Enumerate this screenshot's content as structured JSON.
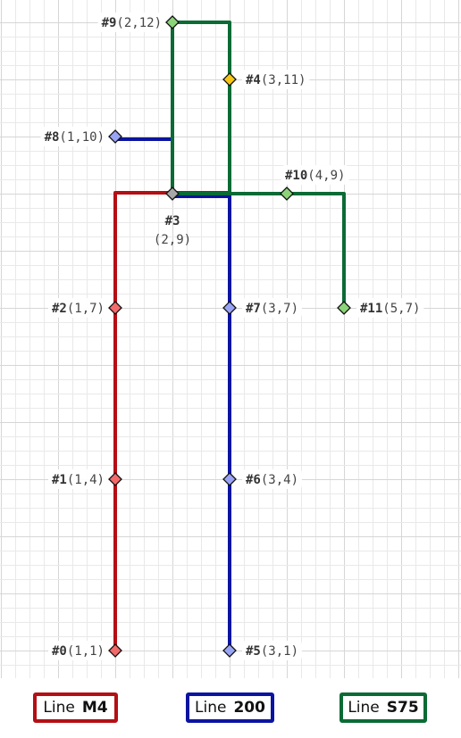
{
  "colors": {
    "M4": "#b30f14",
    "200": "#0b14a0",
    "S75": "#0b6b35",
    "grid_minor": "#e9e9e9",
    "grid_major": "#d6d6d6"
  },
  "nodes": [
    {
      "id": "#0",
      "x": 1,
      "y": 1,
      "color": "#f26a6a",
      "label_side": "left"
    },
    {
      "id": "#1",
      "x": 1,
      "y": 4,
      "color": "#f26a6a",
      "label_side": "left"
    },
    {
      "id": "#2",
      "x": 1,
      "y": 7,
      "color": "#f26a6a",
      "label_side": "left"
    },
    {
      "id": "#3",
      "x": 2,
      "y": 9,
      "color": "#a8a8a8",
      "label_side": "below"
    },
    {
      "id": "#4",
      "x": 3,
      "y": 11,
      "color": "#f5c518",
      "label_side": "right"
    },
    {
      "id": "#5",
      "x": 3,
      "y": 1,
      "color": "#9aa4f5",
      "label_side": "right"
    },
    {
      "id": "#6",
      "x": 3,
      "y": 4,
      "color": "#9aa4f5",
      "label_side": "right"
    },
    {
      "id": "#7",
      "x": 3,
      "y": 7,
      "color": "#9aa4f5",
      "label_side": "right"
    },
    {
      "id": "#8",
      "x": 1,
      "y": 10,
      "color": "#9aa4f5",
      "label_side": "left"
    },
    {
      "id": "#9",
      "x": 2,
      "y": 12,
      "color": "#8cd47a",
      "label_side": "left"
    },
    {
      "id": "#10",
      "x": 4,
      "y": 9,
      "color": "#8cd47a",
      "label_side": "above"
    },
    {
      "id": "#11",
      "x": 5,
      "y": 7,
      "color": "#8cd47a",
      "label_side": "right"
    }
  ],
  "lines": [
    {
      "name": "M4",
      "color_key": "M4",
      "path": [
        [
          1,
          1
        ],
        [
          1,
          4
        ],
        [
          1,
          7
        ],
        [
          1,
          9
        ],
        [
          2,
          9
        ],
        [
          3,
          9
        ],
        [
          3,
          11
        ]
      ]
    },
    {
      "name": "200",
      "color_key": "200",
      "path": [
        [
          3,
          1
        ],
        [
          3,
          4
        ],
        [
          3,
          7
        ],
        [
          3,
          9
        ],
        [
          2,
          9
        ],
        [
          2,
          10
        ],
        [
          1,
          10
        ]
      ]
    },
    {
      "name": "S75",
      "color_key": "S75",
      "path": [
        [
          5,
          7
        ],
        [
          5,
          9
        ],
        [
          4,
          9
        ],
        [
          3,
          9
        ],
        [
          2,
          9
        ],
        [
          2,
          12
        ],
        [
          3,
          12
        ],
        [
          3,
          9
        ]
      ]
    }
  ],
  "legend": [
    {
      "word": "Line",
      "name": "M4",
      "color_key": "M4"
    },
    {
      "word": "Line",
      "name": "200",
      "color_key": "200"
    },
    {
      "word": "Line",
      "name": "S75",
      "color_key": "S75"
    }
  ]
}
